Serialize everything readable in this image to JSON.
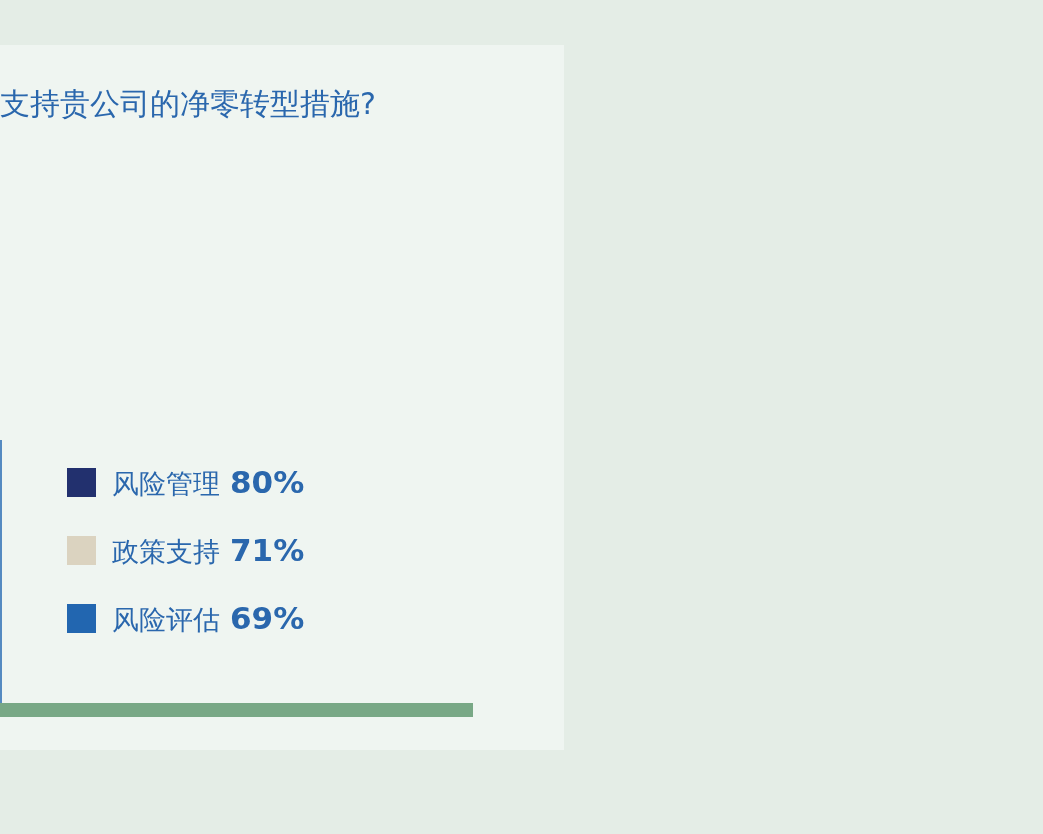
{
  "chart_data": {
    "type": "other",
    "title": "支持贵公司的净零转型措施?",
    "categories": [
      "风险管理",
      "政策支持",
      "风险评估"
    ],
    "values": [
      80,
      71,
      69
    ],
    "value_labels": [
      "80%",
      "71%",
      "69%"
    ],
    "colors": [
      "#22306e",
      "#dbd3c0",
      "#2266b0"
    ]
  }
}
